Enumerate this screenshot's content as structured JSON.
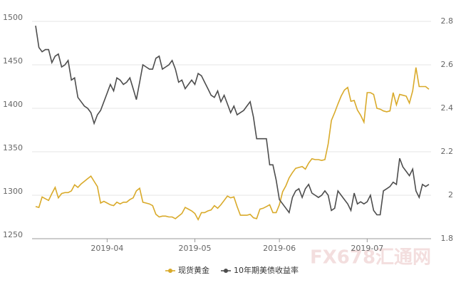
{
  "chart_data": {
    "type": "line",
    "categories": [
      null,
      null,
      null,
      null,
      null,
      null,
      null,
      null,
      null,
      null,
      null,
      null,
      null,
      null,
      null,
      null,
      null,
      null,
      null,
      null,
      null,
      null,
      "2019-04",
      null,
      null,
      null,
      null,
      null,
      null,
      null,
      null,
      null,
      null,
      null,
      null,
      null,
      null,
      null,
      null,
      null,
      null,
      null,
      null,
      null,
      null,
      null,
      null,
      null,
      null,
      "2019-05",
      null,
      null,
      null,
      null,
      null,
      null,
      null,
      null,
      null,
      null,
      null,
      null,
      null,
      null,
      null,
      null,
      null,
      null,
      null,
      null,
      null,
      null,
      null,
      null,
      null,
      "2019-06",
      null,
      null,
      null,
      null,
      null,
      null,
      null,
      null,
      null,
      null,
      null,
      null,
      null,
      null,
      null,
      null,
      null,
      null,
      null,
      null,
      null,
      null,
      null,
      null,
      null,
      null,
      "2019-07",
      null,
      null,
      null,
      null,
      null,
      null,
      null,
      null,
      null,
      null,
      null,
      null,
      null,
      null,
      null,
      null,
      null,
      null,
      null
    ],
    "series": [
      {
        "name": "现货黄金",
        "color": "#d9aa2a",
        "values": [
          1287,
          1286,
          1298,
          1296,
          1294,
          1302,
          1309,
          1297,
          1302,
          1303,
          1303,
          1305,
          1312,
          1309,
          1313,
          1316,
          1319,
          1322,
          1316,
          1310,
          1291,
          1293,
          1291,
          1289,
          1288,
          1292,
          1290,
          1292,
          1292,
          1295,
          1297,
          1305,
          1308,
          1292,
          1291,
          1290,
          1288,
          1278,
          1275,
          1276,
          1276,
          1275,
          1275,
          1273,
          1276,
          1279,
          1286,
          1284,
          1282,
          1279,
          1272,
          1280,
          1280,
          1282,
          1283,
          1288,
          1285,
          1289,
          1294,
          1299,
          1297,
          1298,
          1287,
          1277,
          1277,
          1277,
          1278,
          1274,
          1273,
          1284,
          1285,
          1287,
          1289,
          1280,
          1280,
          1289,
          1304,
          1311,
          1320,
          1326,
          1331,
          1332,
          1333,
          1330,
          1337,
          1342,
          1341,
          1341,
          1340,
          1341,
          1359,
          1386,
          1395,
          1405,
          1414,
          1421,
          1424,
          1408,
          1409,
          1398,
          1392,
          1384,
          1418,
          1418,
          1416,
          1400,
          1399,
          1397,
          1396,
          1397,
          1418,
          1404,
          1416,
          1415,
          1414,
          1406,
          1420,
          1447,
          1425,
          1425,
          1425,
          1422
        ]
      },
      {
        "name": "10年期美债收益率",
        "color": "#4d4d4d",
        "axis": "y2",
        "values": [
          2.78,
          2.68,
          2.66,
          2.67,
          2.67,
          2.61,
          2.64,
          2.65,
          2.59,
          2.6,
          2.62,
          2.53,
          2.54,
          2.45,
          2.43,
          2.41,
          2.4,
          2.38,
          2.33,
          2.37,
          2.39,
          2.43,
          2.47,
          2.51,
          2.48,
          2.54,
          2.53,
          2.51,
          2.52,
          2.54,
          2.49,
          2.44,
          2.52,
          2.6,
          2.59,
          2.58,
          2.58,
          2.63,
          2.64,
          2.58,
          2.59,
          2.6,
          2.62,
          2.58,
          2.52,
          2.53,
          2.49,
          2.51,
          2.53,
          2.51,
          2.56,
          2.55,
          2.52,
          2.49,
          2.46,
          2.45,
          2.48,
          2.43,
          2.46,
          2.42,
          2.38,
          2.41,
          2.37,
          2.38,
          2.39,
          2.41,
          2.43,
          2.36,
          2.26,
          2.26,
          2.26,
          2.26,
          2.14,
          2.14,
          2.07,
          1.98,
          1.96,
          1.94,
          1.92,
          1.99,
          2.02,
          2.03,
          1.99,
          2.03,
          2.05,
          2.01,
          2.0,
          1.99,
          2.0,
          2.02,
          2.0,
          1.93,
          1.94,
          2.02,
          2.0,
          1.98,
          1.96,
          1.93,
          2.01,
          1.96,
          1.97,
          1.96,
          1.97,
          2.0,
          1.93,
          1.91,
          1.91,
          2.02,
          2.03,
          2.04,
          2.06,
          2.05,
          2.17,
          2.13,
          2.11,
          2.09,
          2.12,
          2.02,
          1.99,
          2.05,
          2.04,
          2.05
        ]
      }
    ],
    "ylim": [
      1250,
      1500
    ],
    "yticks": [
      1250,
      1300,
      1350,
      1400,
      1450,
      1500
    ],
    "y2lim": [
      1.8,
      2.8
    ],
    "y2ticks": [
      1.8,
      2,
      2.2,
      2.4,
      2.6,
      2.8
    ],
    "grid": true,
    "legend": "bottom",
    "watermark": "FX678汇通网"
  }
}
